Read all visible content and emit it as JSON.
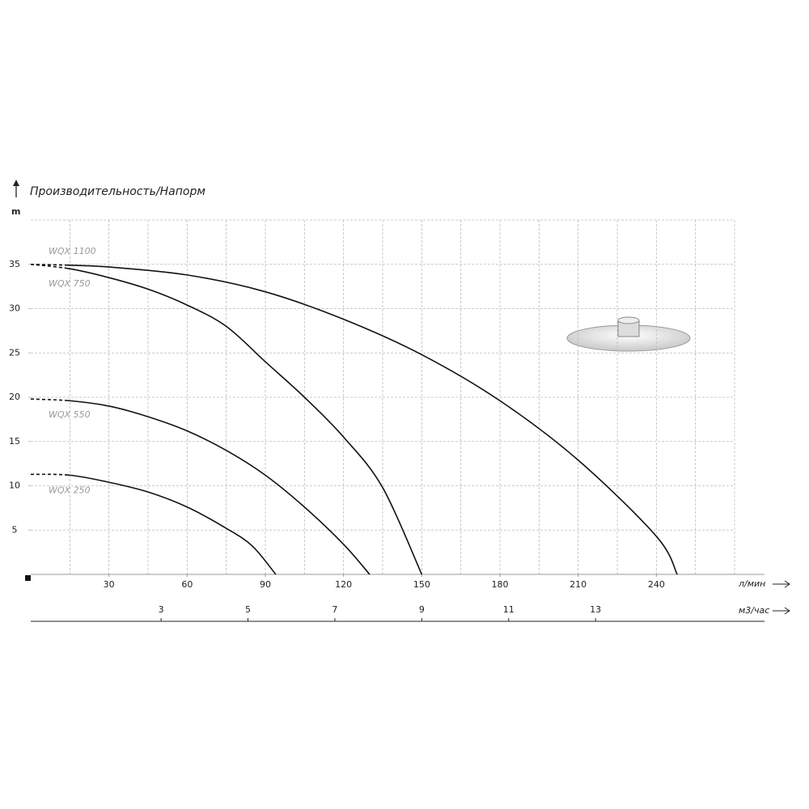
{
  "chart_data": {
    "type": "line",
    "title": "Производительность/Напорм",
    "y_label": "m",
    "x_label": "л/мин",
    "x2_label": "м3/час",
    "xlim": [
      0,
      270
    ],
    "xticks": [
      30,
      60,
      90,
      120,
      150,
      180,
      210,
      240
    ],
    "x2lim": [
      0,
      16.2
    ],
    "x2ticks": [
      3,
      5,
      7,
      9,
      11,
      13
    ],
    "ylim": [
      0,
      40
    ],
    "yticks": [
      5,
      10,
      15,
      20,
      25,
      30,
      35
    ],
    "grid": true,
    "x_grid_step": 15,
    "y_grid_step": 5,
    "series": [
      {
        "name": "WQX 1100",
        "color": "#111111",
        "start_style": "dashed",
        "x": [
          0,
          15,
          30,
          60,
          90,
          120,
          150,
          180,
          210,
          240,
          248
        ],
        "values": [
          35,
          34.9,
          34.7,
          33.8,
          31.9,
          28.8,
          24.8,
          19.6,
          12.9,
          4.3,
          0
        ]
      },
      {
        "name": "WQX 750",
        "color": "#111111",
        "start_style": "dashed",
        "x": [
          0,
          15,
          30,
          45,
          60,
          75,
          90,
          105,
          120,
          135,
          150
        ],
        "values": [
          35,
          34.5,
          33.5,
          32.2,
          30.4,
          28,
          24,
          20,
          15.5,
          9.8,
          0
        ]
      },
      {
        "name": "WQX 550",
        "color": "#111111",
        "start_style": "dashed",
        "x": [
          0,
          15,
          30,
          45,
          60,
          75,
          90,
          105,
          120,
          130
        ],
        "values": [
          19.8,
          19.6,
          19,
          17.8,
          16.2,
          14,
          11.2,
          7.6,
          3.4,
          0
        ]
      },
      {
        "name": "WQX 250",
        "color": "#111111",
        "start_style": "dashed",
        "x": [
          0,
          15,
          30,
          45,
          60,
          75,
          85,
          94
        ],
        "values": [
          11.3,
          11.2,
          10.4,
          9.3,
          7.6,
          5.2,
          3.2,
          0
        ]
      }
    ]
  }
}
